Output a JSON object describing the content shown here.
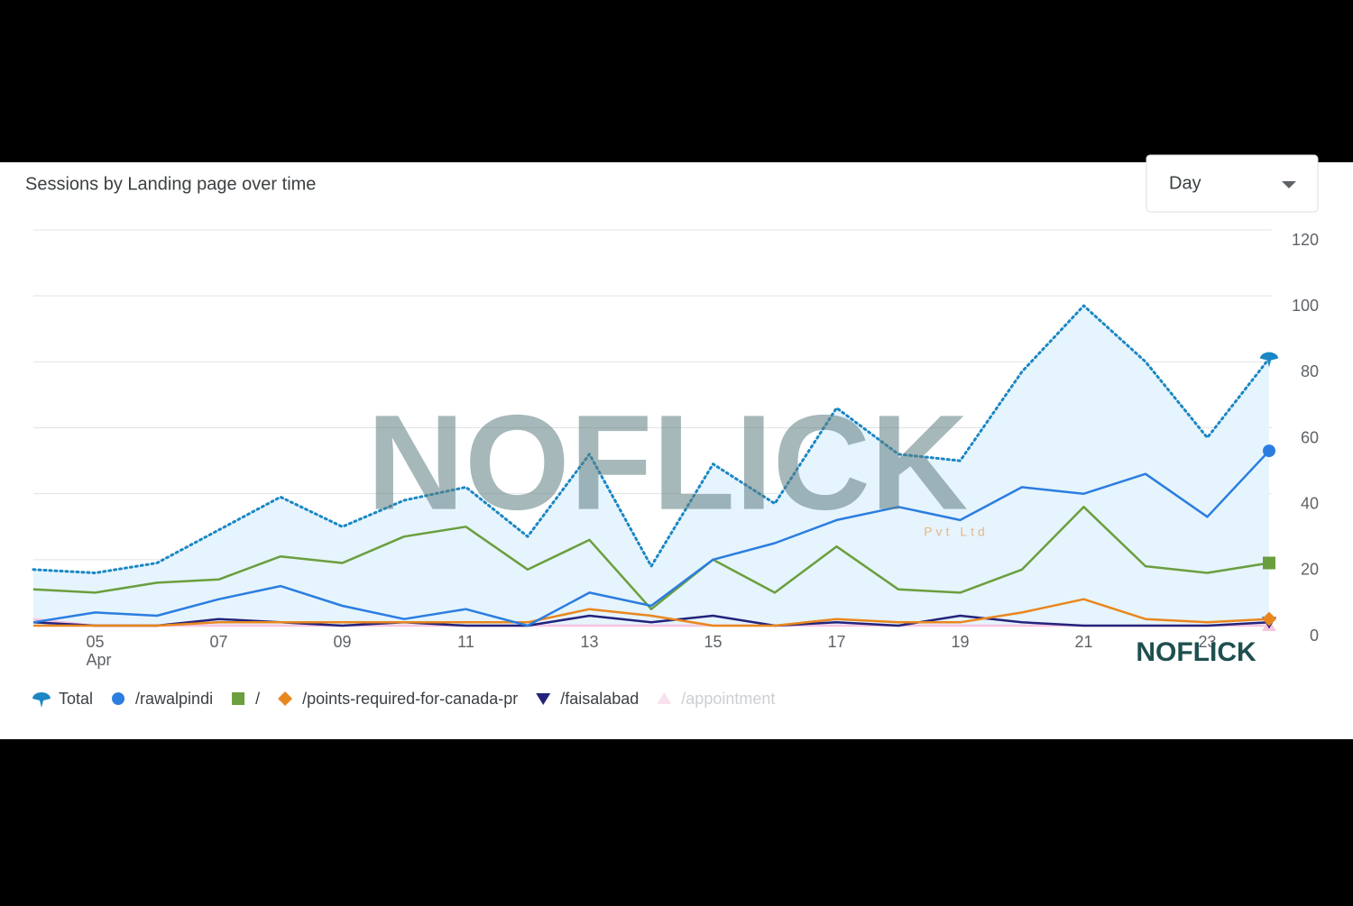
{
  "chart_data": {
    "type": "line",
    "title": "Sessions by Landing page over time",
    "control": "Day",
    "month_label": "Apr",
    "watermark": "NOFLICK",
    "watermark_sub": "Pvt Ltd",
    "categories": [
      null,
      "05",
      null,
      "07",
      null,
      "09",
      null,
      "11",
      null,
      "13",
      null,
      "15",
      null,
      "17",
      null,
      "19",
      null,
      "21",
      null,
      "23",
      null
    ],
    "ylim": [
      0,
      120
    ],
    "yticks": [
      0,
      20,
      40,
      60,
      80,
      100,
      120
    ],
    "grid": true,
    "series": [
      {
        "name": "Total",
        "color": "#1a87c4",
        "marker": "drop",
        "area": true,
        "dotted": true,
        "values": [
          17,
          16,
          19,
          29,
          39,
          30,
          38,
          42,
          27,
          52,
          18,
          49,
          37,
          66,
          52,
          50,
          77,
          97,
          80,
          57,
          81
        ]
      },
      {
        "name": "/rawalpindi",
        "color": "#2b7de0",
        "marker": "circle",
        "values": [
          1,
          4,
          3,
          8,
          12,
          6,
          2,
          5,
          0,
          10,
          6,
          20,
          25,
          32,
          36,
          32,
          42,
          40,
          46,
          33,
          53
        ]
      },
      {
        "name": "/",
        "color": "#6b9e3e",
        "marker": "square",
        "values": [
          11,
          10,
          13,
          14,
          21,
          19,
          27,
          30,
          17,
          26,
          5,
          20,
          10,
          24,
          11,
          10,
          17,
          36,
          18,
          16,
          19
        ]
      },
      {
        "name": "/points-required-for-canada-pr",
        "color": "#e8871e",
        "marker": "diamond",
        "values": [
          0,
          0,
          0,
          1,
          1,
          1,
          1,
          1,
          1,
          5,
          3,
          0,
          0,
          2,
          1,
          1,
          4,
          8,
          2,
          1,
          2
        ]
      },
      {
        "name": "/faisalabad",
        "color": "#24237c",
        "marker": "down",
        "values": [
          1,
          0,
          0,
          2,
          1,
          0,
          1,
          0,
          0,
          3,
          1,
          3,
          0,
          1,
          0,
          3,
          1,
          0,
          0,
          0,
          1
        ]
      },
      {
        "name": "/appointment",
        "color": "#f6c5e0",
        "marker": "up",
        "faded": true,
        "values": [
          2,
          0,
          0,
          0,
          0,
          0,
          0,
          0,
          0,
          0,
          0,
          0,
          0,
          0,
          0,
          0,
          0,
          0,
          0,
          0,
          0
        ]
      }
    ]
  }
}
